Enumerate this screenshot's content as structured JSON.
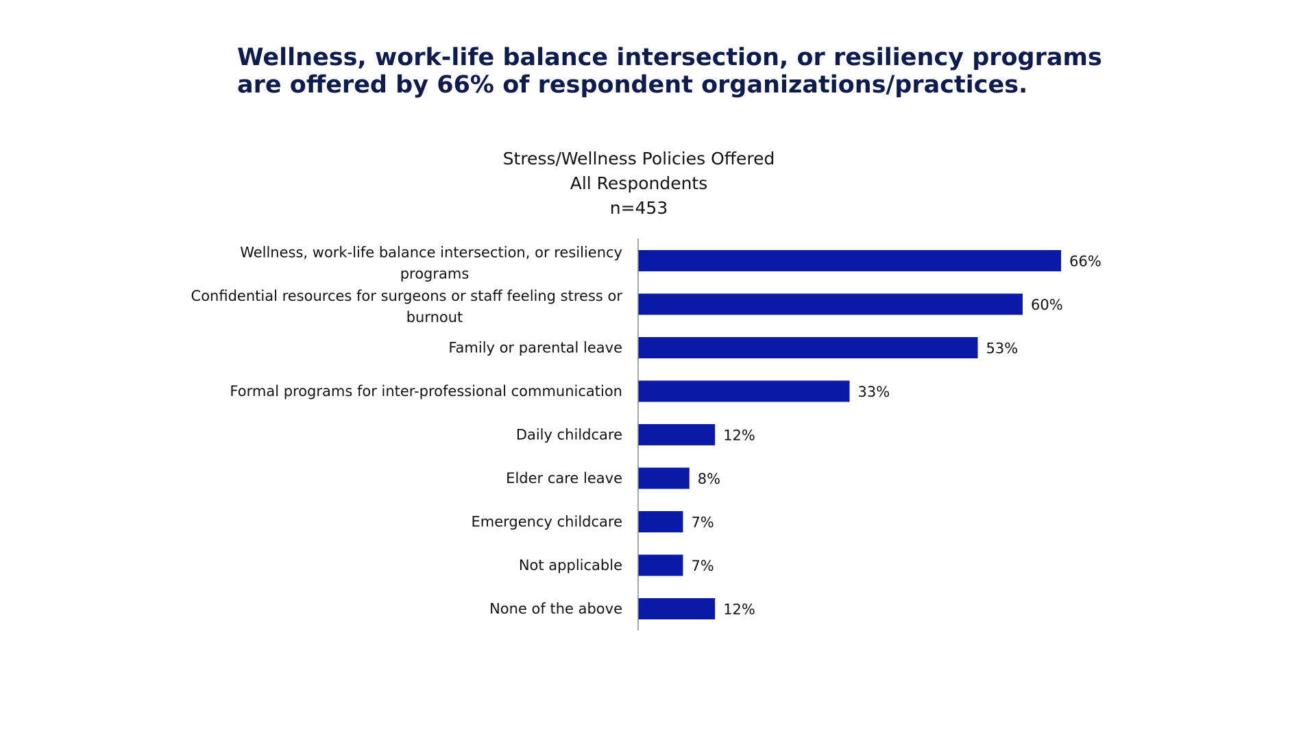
{
  "headline": {
    "line1": "Wellness, work-life balance intersection, or resiliency programs",
    "line2": "are offered by 66% of respondent organizations/practices."
  },
  "chart_data": {
    "type": "bar",
    "orientation": "horizontal",
    "title": "Stress/Wellness Policies Offered",
    "subtitle": "All Respondents",
    "sample": "n=453",
    "categories": [
      [
        "Wellness, work-life balance intersection, or resiliency",
        "programs"
      ],
      [
        "Confidential resources for surgeons or staff feeling stress or",
        "burnout"
      ],
      [
        "Family or parental leave"
      ],
      [
        "Formal programs for inter-professional communication"
      ],
      [
        "Daily childcare"
      ],
      [
        "Elder care leave"
      ],
      [
        "Emergency childcare"
      ],
      [
        "Not applicable"
      ],
      [
        "None of the above"
      ]
    ],
    "values": [
      66,
      60,
      53,
      33,
      12,
      8,
      7,
      7,
      12
    ],
    "value_labels": [
      "66%",
      "60%",
      "53%",
      "33%",
      "12%",
      "8%",
      "7%",
      "7%",
      "12%"
    ],
    "unit": "%",
    "xlim": [
      0,
      100
    ],
    "bar_color": "#0a1aa6",
    "axis_color": "#888888",
    "grid": false,
    "legend": "none"
  }
}
